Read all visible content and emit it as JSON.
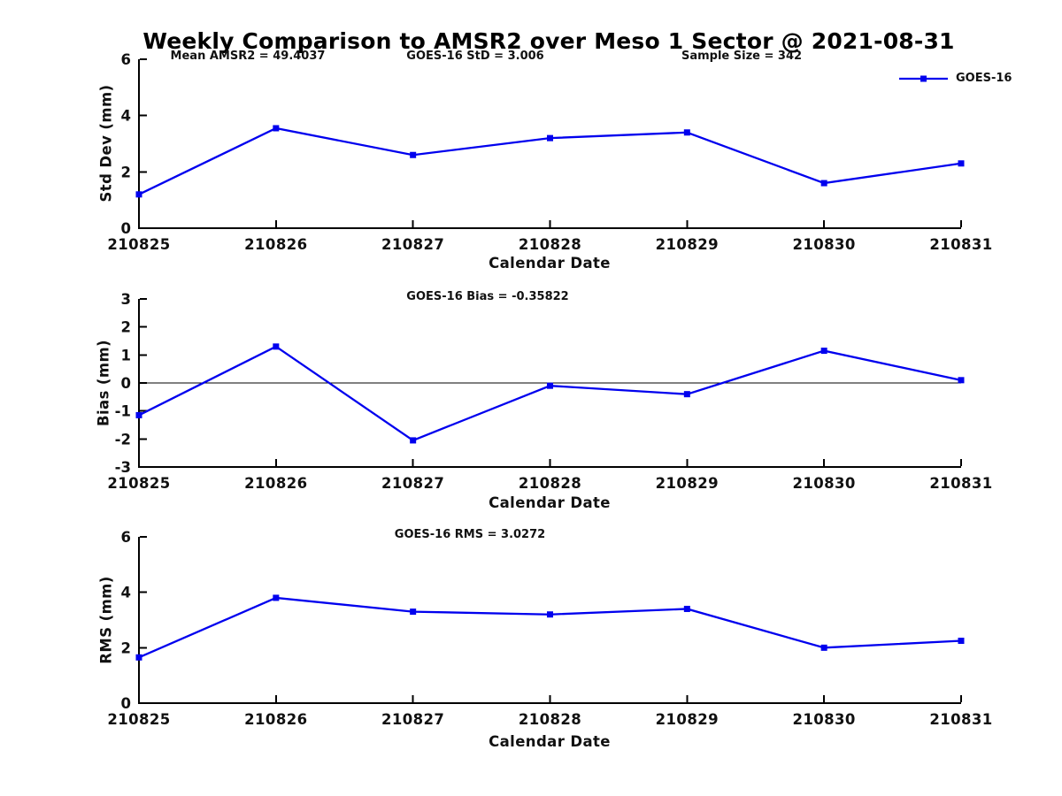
{
  "title": "Weekly Comparison to AMSR2 over Meso 1 Sector @ 2021-08-31",
  "legend": {
    "label": "GOES-16",
    "color": "#0000EE",
    "marker": "filled-square",
    "position": "top-right"
  },
  "chart_data": [
    {
      "type": "line",
      "name": "std-dev",
      "annotations": [
        "Mean AMSR2 = 49.4037",
        "GOES-16 StD = 3.006",
        "Sample Size = 342"
      ],
      "categories": [
        "210825",
        "210826",
        "210827",
        "210828",
        "210829",
        "210830",
        "210831"
      ],
      "series": [
        {
          "name": "GOES-16",
          "color": "#0000EE",
          "values": [
            1.2,
            3.55,
            2.6,
            3.2,
            3.4,
            1.6,
            2.3
          ]
        }
      ],
      "xlabel": "Calendar Date",
      "ylabel": "Std Dev (mm)",
      "ylim": [
        0,
        6
      ],
      "yticks": [
        0,
        2,
        4,
        6
      ],
      "grid": false,
      "zero_line": false
    },
    {
      "type": "line",
      "name": "bias",
      "annotations": [
        "GOES-16 Bias  = -0.35822"
      ],
      "categories": [
        "210825",
        "210826",
        "210827",
        "210828",
        "210829",
        "210830",
        "210831"
      ],
      "series": [
        {
          "name": "GOES-16",
          "color": "#0000EE",
          "values": [
            -1.15,
            1.3,
            -2.05,
            -0.1,
            -0.4,
            1.15,
            0.1
          ]
        }
      ],
      "xlabel": "Calendar Date",
      "ylabel": "Bias (mm)",
      "ylim": [
        -3,
        3
      ],
      "yticks": [
        -3,
        -2,
        -1,
        0,
        1,
        2,
        3
      ],
      "grid": false,
      "zero_line": true
    },
    {
      "type": "line",
      "name": "rms",
      "annotations": [
        "GOES-16 RMS = 3.0272"
      ],
      "categories": [
        "210825",
        "210826",
        "210827",
        "210828",
        "210829",
        "210830",
        "210831"
      ],
      "series": [
        {
          "name": "GOES-16",
          "color": "#0000EE",
          "values": [
            1.65,
            3.8,
            3.3,
            3.2,
            3.4,
            2.0,
            2.25
          ]
        }
      ],
      "xlabel": "Calendar Date",
      "ylabel": "RMS (mm)",
      "ylim": [
        0,
        6
      ],
      "yticks": [
        0,
        2,
        4,
        6
      ],
      "grid": false,
      "zero_line": false
    }
  ]
}
